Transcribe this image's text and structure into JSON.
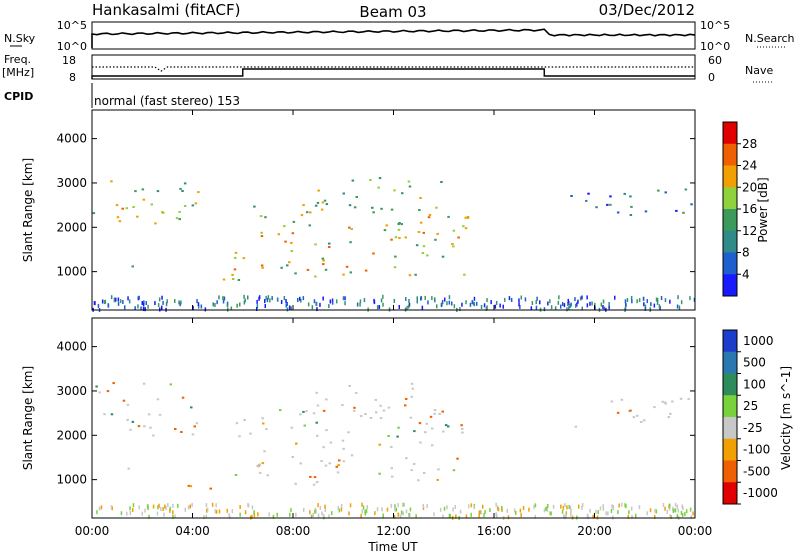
{
  "header": {
    "left": "Hankasalmi (fitACF)",
    "center": "Beam 03",
    "right": "03/Dec/2012"
  },
  "noise_panel": {
    "left_label": "N.Sky",
    "right_label": "N.Search",
    "left_ticks": [
      "10^5",
      "10^0"
    ],
    "right_ticks": [
      "10^5",
      "10^0"
    ],
    "step_at_hour": 18
  },
  "freq_panel": {
    "left_label": "Freq.",
    "left_unit": "[MHz]",
    "left_ticks": [
      18,
      8
    ],
    "right_label": "Nave",
    "right_ticks": [
      60,
      0
    ],
    "nave_dip_hours": [
      2.6,
      2.8
    ],
    "step_hours": [
      0,
      6,
      18
    ]
  },
  "cpid_panel": {
    "label": "CPID",
    "mode_text": "normal (fast stereo) 153"
  },
  "chart_data": [
    {
      "type": "heatmap",
      "quantity": "power",
      "ylabel": "Slant Range [km]",
      "xlim_hours": [
        0,
        24
      ],
      "ylim_km": [
        180,
        4600
      ],
      "yticks": [
        1000,
        2000,
        3000,
        4000
      ],
      "colorbar": {
        "label": "Power [dB]",
        "ticks": [
          4,
          8,
          12,
          16,
          20,
          24,
          28
        ],
        "range": [
          0,
          32
        ],
        "colors": [
          "#1a1aff",
          "#1e5fd0",
          "#2f8a8a",
          "#3c9a5a",
          "#90d23c",
          "#f0a000",
          "#f06000",
          "#e00000"
        ]
      },
      "echo_regions": [
        {
          "t": [
            0.0,
            4.2
          ],
          "r": [
            2000,
            3200
          ],
          "level": 18
        },
        {
          "t": [
            1.0,
            1.6
          ],
          "r": [
            1100,
            1300
          ],
          "level": 14
        },
        {
          "t": [
            3.8,
            6.0
          ],
          "r": [
            650,
            950
          ],
          "level": 22
        },
        {
          "t": [
            5.6,
            15.0
          ],
          "r": [
            900,
            2600
          ],
          "level": 18
        },
        {
          "t": [
            8.8,
            14.2
          ],
          "r": [
            2400,
            3200
          ],
          "level": 16
        },
        {
          "t": [
            19.0,
            24.0
          ],
          "r": [
            2200,
            2900
          ],
          "level": 8
        }
      ]
    },
    {
      "type": "heatmap",
      "quantity": "velocity",
      "ylabel": "Slant Range [km]",
      "xlim_hours": [
        0,
        24
      ],
      "ylim_km": [
        180,
        4600
      ],
      "yticks": [
        1000,
        2000,
        3000,
        4000
      ],
      "colorbar": {
        "label": "Velocity [m s^-1]",
        "ticks": [
          1000,
          500,
          100,
          25,
          -25,
          -100,
          -500,
          -1000
        ],
        "colors": [
          "#1c3ccc",
          "#2a78b0",
          "#2e8c5c",
          "#78d23c",
          "#c8c8c8",
          "#f0a000",
          "#f06000",
          "#e00000"
        ]
      },
      "echo_regions": [
        {
          "t": [
            0.0,
            4.2
          ],
          "r": [
            2000,
            3200
          ],
          "vel": 0
        },
        {
          "t": [
            1.0,
            1.6
          ],
          "r": [
            1100,
            1300
          ],
          "vel": 150
        },
        {
          "t": [
            3.8,
            6.0
          ],
          "r": [
            700,
            950
          ],
          "vel": -150
        },
        {
          "t": [
            5.6,
            15.0
          ],
          "r": [
            900,
            2600
          ],
          "vel": 0
        },
        {
          "t": [
            8.8,
            14.2
          ],
          "r": [
            2400,
            3200
          ],
          "vel": -300
        },
        {
          "t": [
            19.0,
            24.0
          ],
          "r": [
            2200,
            2900
          ],
          "vel": 0
        }
      ]
    }
  ],
  "time_axis": {
    "ticks": [
      "00:00",
      "04:00",
      "08:00",
      "12:00",
      "16:00",
      "20:00",
      "00:00"
    ],
    "label": "Time UT"
  }
}
